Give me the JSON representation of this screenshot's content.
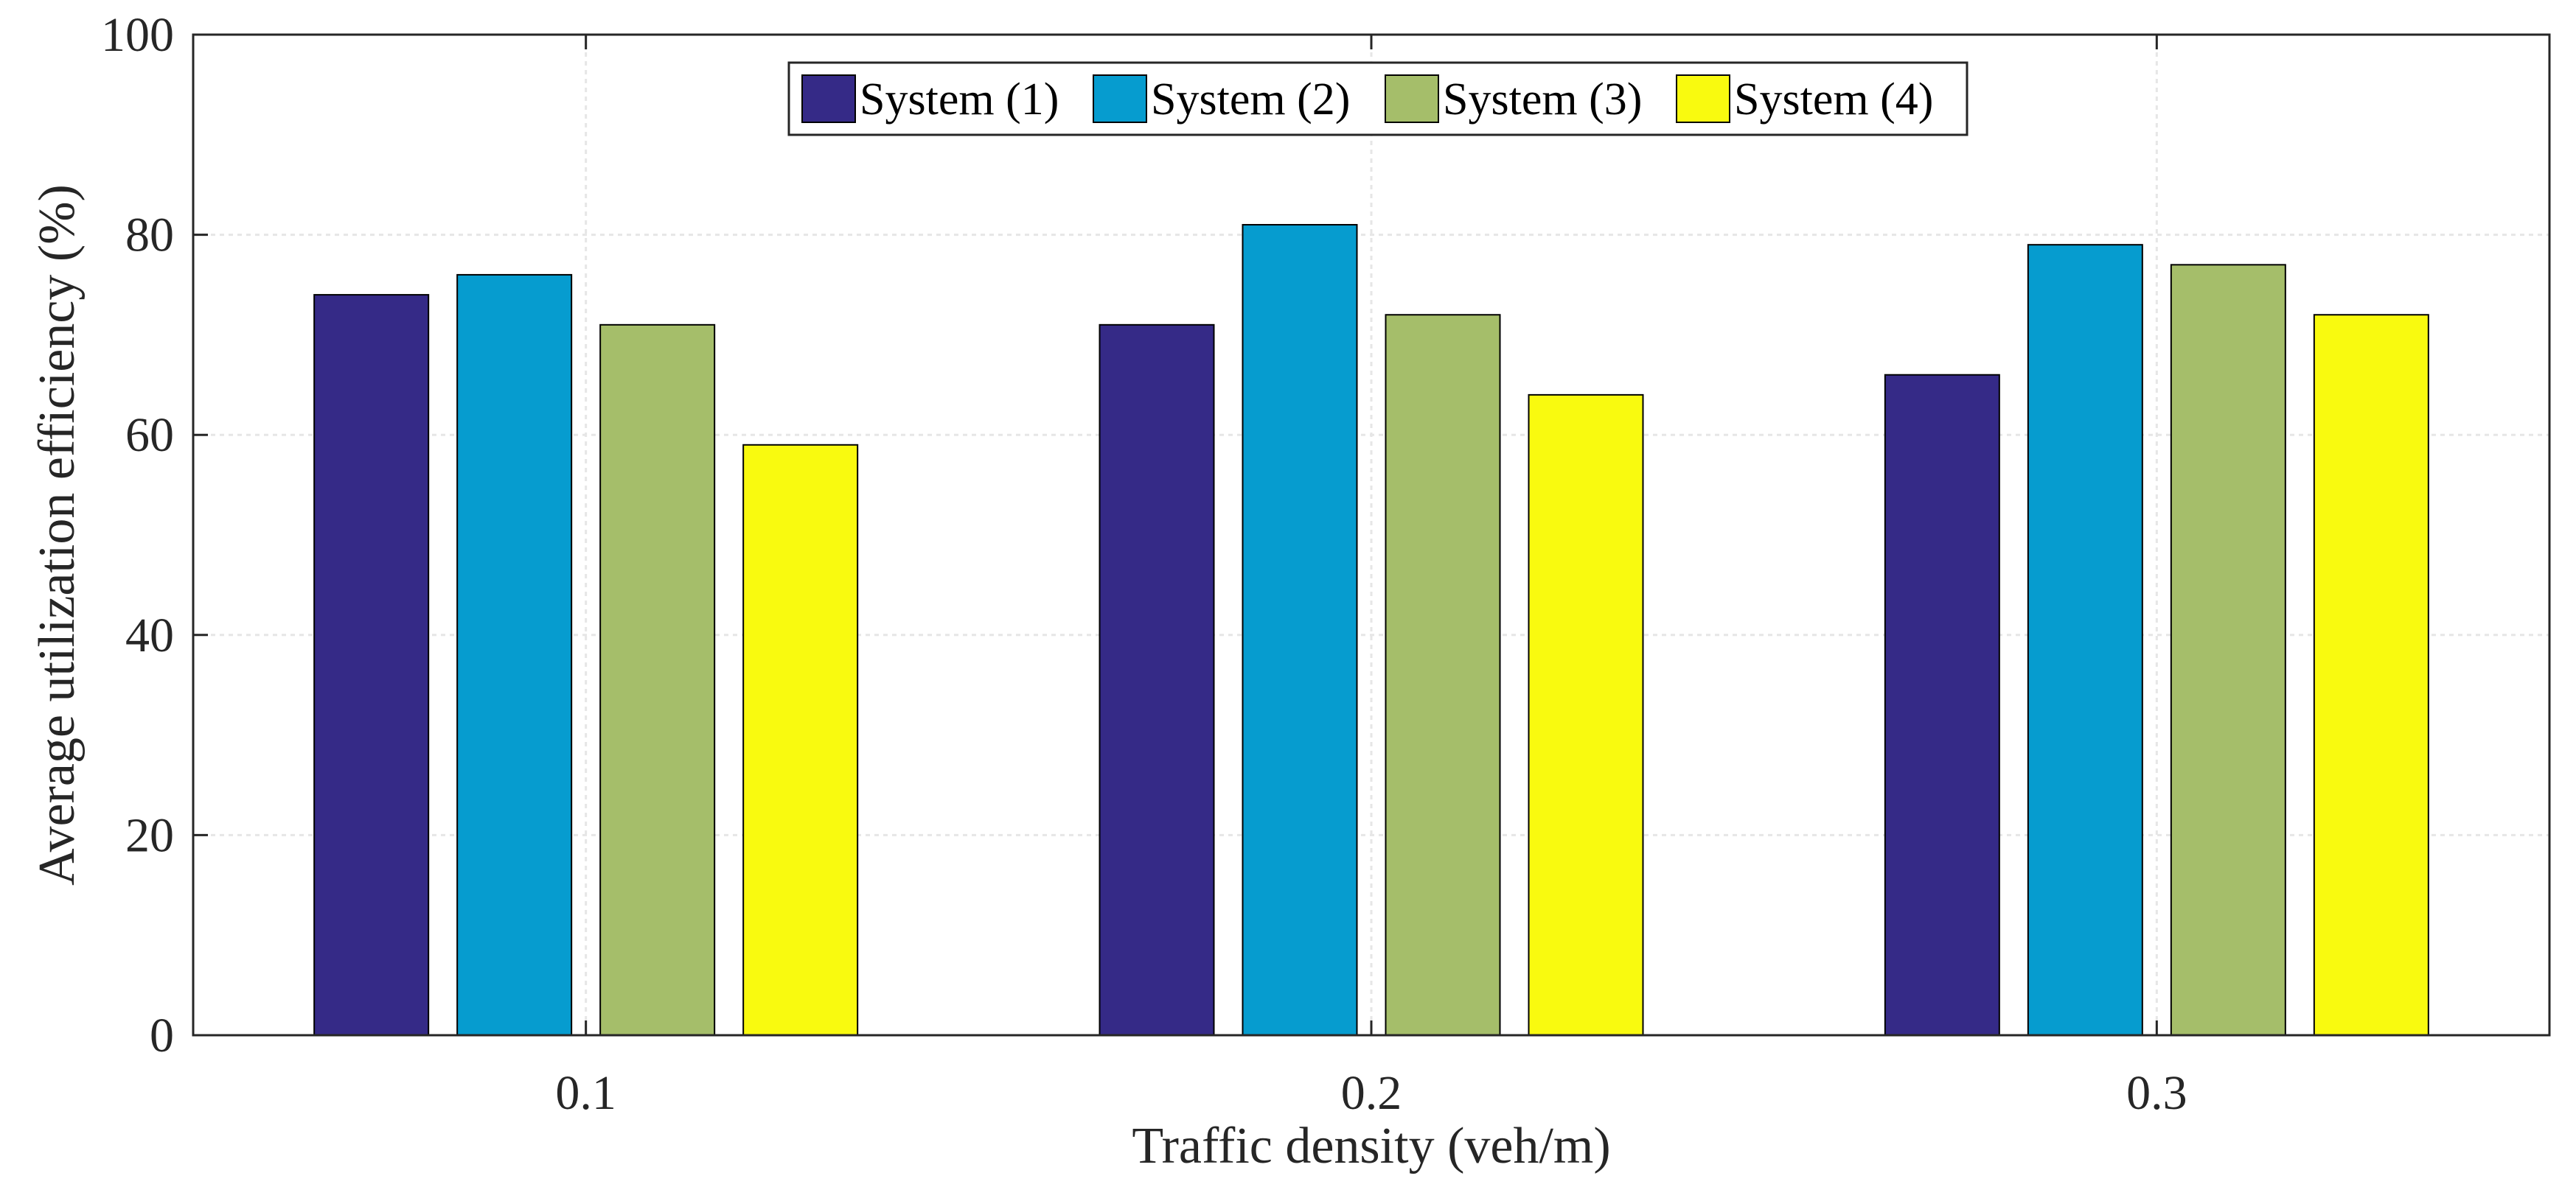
{
  "chart_data": {
    "type": "bar",
    "title": "",
    "xlabel": "Traffic density (veh/m)",
    "ylabel": "Average utilization efficiency (%)",
    "categories": [
      "0.1",
      "0.2",
      "0.3"
    ],
    "series": [
      {
        "name": "System (1)",
        "color": "#352a87",
        "values": [
          74,
          71,
          66
        ]
      },
      {
        "name": "System (2)",
        "color": "#069ccf",
        "values": [
          76,
          81,
          79
        ]
      },
      {
        "name": "System (3)",
        "color": "#a5be6a",
        "values": [
          71,
          72,
          77
        ]
      },
      {
        "name": "System (4)",
        "color": "#f9fa0f",
        "values": [
          59,
          64,
          72
        ]
      }
    ],
    "ylim": [
      0,
      100
    ],
    "yticks": [
      "0",
      "20",
      "40",
      "60",
      "80",
      "100"
    ],
    "grid": true,
    "legend_position": "top-center"
  }
}
